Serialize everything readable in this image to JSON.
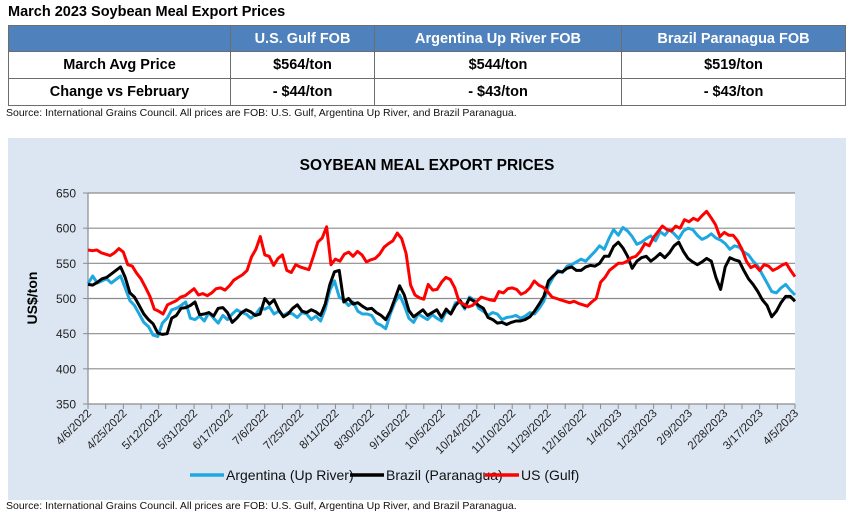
{
  "title": "March 2023 Soybean Meal Export Prices",
  "table": {
    "headers": [
      "",
      "U.S. Gulf FOB",
      "Argentina Up River FOB",
      "Brazil Paranagua FOB"
    ],
    "rows": [
      {
        "label": "March Avg Price",
        "values": [
          "$564/ton",
          "$544/ton",
          "$519/ton"
        ]
      },
      {
        "label": "Change vs February",
        "values": [
          "- $44/ton",
          "- $43/ton",
          "- $43/ton"
        ]
      }
    ]
  },
  "source_top": "Source: International Grains Council. All prices are FOB: U.S. Gulf, Argentina Up River, and Brazil Paranagua.",
  "source_bottom": "Source: International Grains Council. All prices are FOB: U.S. Gulf, Argentina Up River, and Brazil Paranagua.",
  "chart_data": {
    "type": "line",
    "title": "SOYBEAN MEAL EXPORT PRICES",
    "xlabel": "",
    "ylabel": "US$/ton",
    "ylim": [
      350,
      650
    ],
    "yticks": [
      350,
      400,
      450,
      500,
      550,
      600,
      650
    ],
    "grid": true,
    "legend_position": "bottom",
    "x_tick_labels": [
      "4/6/2022",
      "4/25/2022",
      "5/12/2022",
      "5/31/2022",
      "6/17/2022",
      "7/6/2022",
      "7/25/2022",
      "8/11/2022",
      "8/30/2022",
      "9/16/2022",
      "10/5/2022",
      "10/24/2022",
      "11/10/2022",
      "11/29/2022",
      "12/16/2022",
      "1/4/2023",
      "1/23/2023",
      "2/9/2023",
      "2/28/2023",
      "3/17/2023",
      "4/5/2023"
    ],
    "x_range": [
      "4/6/2022",
      "4/5/2023"
    ],
    "series": [
      {
        "name": "Argentina (Up River)",
        "color": "#1fa7e0",
        "values": [
          521,
          532,
          522,
          525,
          528,
          522,
          527,
          532,
          515,
          497,
          490,
          478,
          466,
          460,
          448,
          446,
          465,
          472,
          484,
          486,
          490,
          495,
          472,
          470,
          475,
          468,
          480,
          472,
          465,
          476,
          470,
          478,
          484,
          480,
          478,
          472,
          477,
          486,
          485,
          488,
          478,
          482,
          476,
          480,
          478,
          473,
          480,
          478,
          470,
          475,
          468,
          485,
          512,
          525,
          502,
          498,
          490,
          495,
          482,
          478,
          478,
          476,
          465,
          462,
          457,
          478,
          495,
          505,
          490,
          472,
          466,
          478,
          474,
          470,
          477,
          472,
          468,
          482,
          478,
          494,
          495,
          485,
          502,
          498,
          486,
          482,
          476,
          480,
          478,
          470,
          473,
          474,
          476,
          472,
          475,
          480,
          478,
          486,
          496,
          518,
          530,
          540,
          537,
          546,
          548,
          552,
          556,
          553,
          560,
          567,
          575,
          570,
          585,
          598,
          590,
          601,
          596,
          588,
          577,
          580,
          585,
          589,
          582,
          595,
          590,
          598,
          592,
          585,
          596,
          600,
          598,
          590,
          584,
          587,
          592,
          586,
          583,
          578,
          570,
          575,
          573,
          566,
          562,
          553,
          546,
          534,
          522,
          510,
          508,
          515,
          520,
          512,
          505
        ]
      },
      {
        "name": "Brazil (Paranagua)",
        "color": "#000000",
        "values": [
          520,
          519,
          523,
          528,
          530,
          535,
          540,
          545,
          530,
          508,
          502,
          490,
          478,
          470,
          464,
          451,
          449,
          450,
          472,
          476,
          486,
          487,
          490,
          495,
          477,
          478,
          480,
          475,
          486,
          487,
          480,
          466,
          472,
          480,
          484,
          481,
          476,
          478,
          500,
          492,
          498,
          484,
          474,
          478,
          486,
          491,
          482,
          480,
          484,
          481,
          476,
          492,
          520,
          538,
          540,
          495,
          500,
          492,
          494,
          489,
          485,
          486,
          480,
          476,
          470,
          482,
          500,
          518,
          505,
          483,
          474,
          479,
          484,
          476,
          480,
          484,
          473,
          485,
          478,
          490,
          497,
          487,
          500,
          496,
          490,
          486,
          473,
          470,
          465,
          466,
          463,
          466,
          468,
          468,
          470,
          474,
          482,
          492,
          503,
          525,
          532,
          538,
          538,
          543,
          545,
          540,
          540,
          545,
          547,
          546,
          550,
          560,
          560,
          574,
          580,
          572,
          560,
          543,
          553,
          558,
          560,
          553,
          558,
          564,
          558,
          565,
          575,
          580,
          567,
          557,
          552,
          548,
          552,
          557,
          553,
          530,
          513,
          545,
          558,
          555,
          553,
          540,
          528,
          520,
          510,
          498,
          490,
          474,
          482,
          494,
          503,
          503,
          496
        ]
      },
      {
        "name": "US (Gulf)",
        "color": "#ff0000",
        "values": [
          569,
          568,
          569,
          565,
          563,
          561,
          565,
          571,
          566,
          548,
          546,
          536,
          528,
          516,
          503,
          485,
          482,
          478,
          491,
          494,
          497,
          502,
          504,
          509,
          514,
          505,
          507,
          504,
          508,
          514,
          515,
          512,
          518,
          526,
          530,
          534,
          540,
          559,
          570,
          588,
          562,
          560,
          547,
          557,
          562,
          540,
          537,
          548,
          545,
          543,
          541,
          560,
          580,
          586,
          602,
          548,
          556,
          553,
          563,
          566,
          560,
          567,
          562,
          552,
          555,
          557,
          563,
          573,
          578,
          582,
          593,
          585,
          564,
          519,
          505,
          501,
          499,
          520,
          512,
          513,
          523,
          530,
          527,
          515,
          495,
          492,
          488,
          490,
          496,
          502,
          500,
          498,
          497,
          510,
          508,
          514,
          515,
          513,
          506,
          509,
          515,
          525,
          519,
          516,
          510,
          502,
          500,
          498,
          496,
          494,
          496,
          493,
          491,
          489,
          495,
          500,
          523,
          530,
          540,
          545,
          550,
          550,
          553,
          558,
          560,
          567,
          578,
          575,
          587,
          595,
          603,
          598,
          596,
          603,
          600,
          612,
          609,
          614,
          611,
          618,
          624,
          615,
          605,
          588,
          594,
          590,
          590,
          582,
          570,
          553,
          544,
          547,
          540,
          548,
          546,
          540,
          543,
          547,
          550,
          540,
          531
        ]
      }
    ]
  }
}
